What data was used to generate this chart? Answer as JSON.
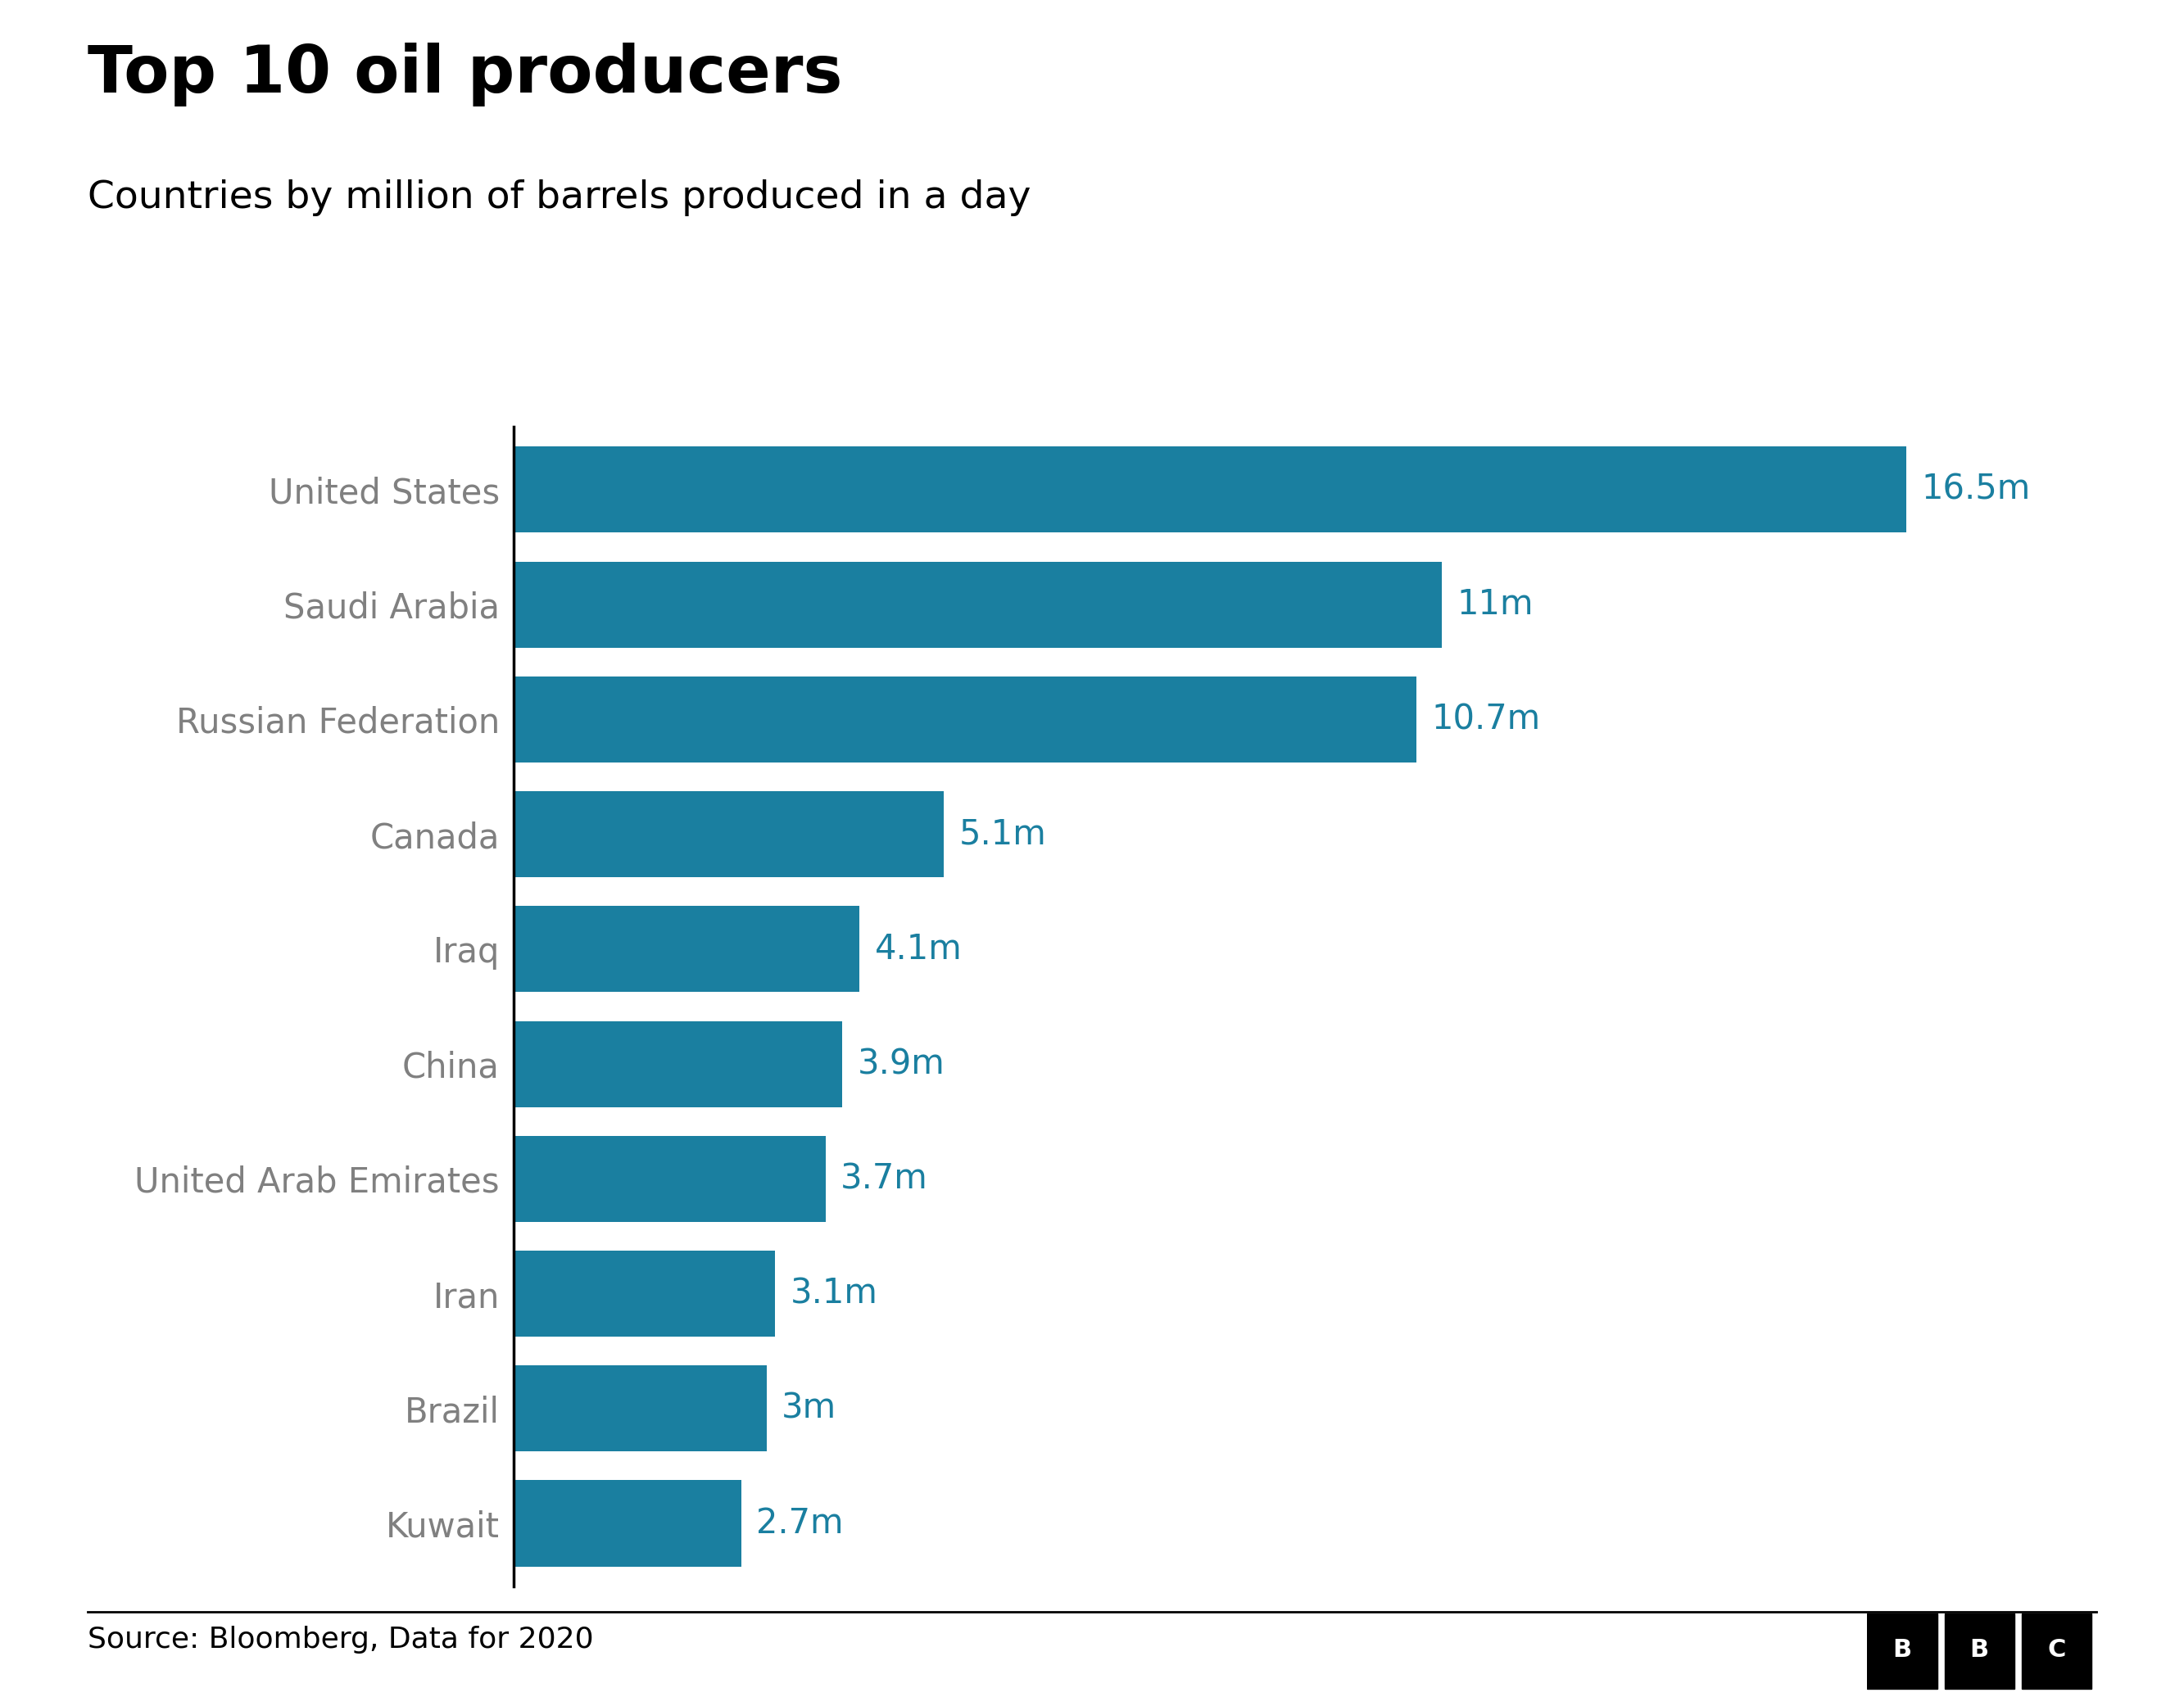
{
  "title": "Top 10 oil producers",
  "subtitle": "Countries by million of barrels produced in a day",
  "source": "Source: Bloomberg, Data for 2020",
  "categories": [
    "United States",
    "Saudi Arabia",
    "Russian Federation",
    "Canada",
    "Iraq",
    "China",
    "United Arab Emirates",
    "Iran",
    "Brazil",
    "Kuwait"
  ],
  "values": [
    16.5,
    11.0,
    10.7,
    5.1,
    4.1,
    3.9,
    3.7,
    3.1,
    3.0,
    2.7
  ],
  "labels": [
    "16.5m",
    "11m",
    "10.7m",
    "5.1m",
    "4.1m",
    "3.9m",
    "3.7m",
    "3.1m",
    "3m",
    "2.7m"
  ],
  "bar_color": "#1a7fa0",
  "label_color": "#1a7fa0",
  "title_color": "#000000",
  "subtitle_color": "#000000",
  "category_color": "#808080",
  "source_color": "#000000",
  "background_color": "#ffffff",
  "xlim": [
    0,
    18.5
  ],
  "bar_height": 0.75,
  "title_fontsize": 58,
  "subtitle_fontsize": 34,
  "category_fontsize": 30,
  "label_fontsize": 30,
  "source_fontsize": 26
}
